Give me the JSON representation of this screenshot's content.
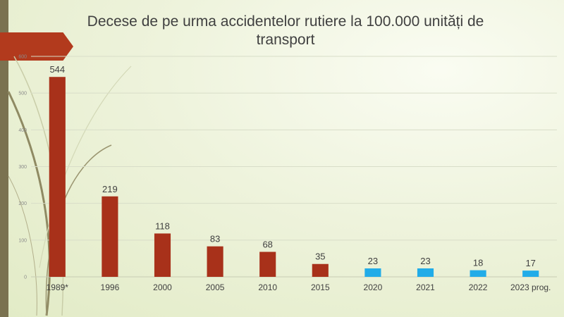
{
  "title": "Decese de pe urma accidentelor rutiere la 100.000 unități de transport",
  "colors": {
    "historical": "#a8311a",
    "recent": "#21ace8",
    "grid": "#d8ddc8",
    "accent": "#b23a1d"
  },
  "chart_data": {
    "type": "bar",
    "title": "Decese de pe urma accidentelor rutiere la 100.000 unități de transport",
    "xlabel": "",
    "ylabel": "",
    "ylim": [
      0,
      600
    ],
    "yticks": [
      "0",
      "100",
      "200",
      "300",
      "400",
      "500",
      "600"
    ],
    "grid": true,
    "legend": "none",
    "categories": [
      "1989*",
      "1996",
      "2000",
      "2005",
      "2010",
      "2015",
      "2020",
      "2021",
      "2022",
      "2023 prog."
    ],
    "values": [
      544,
      219,
      118,
      83,
      68,
      35,
      23,
      23,
      18,
      17
    ],
    "data_labels": [
      "544",
      "219",
      "118",
      "83",
      "68",
      "35",
      "23",
      "23",
      "18",
      "17"
    ],
    "bar_colors": [
      "#a8311a",
      "#a8311a",
      "#a8311a",
      "#a8311a",
      "#a8311a",
      "#a8311a",
      "#21ace8",
      "#21ace8",
      "#21ace8",
      "#21ace8"
    ]
  }
}
